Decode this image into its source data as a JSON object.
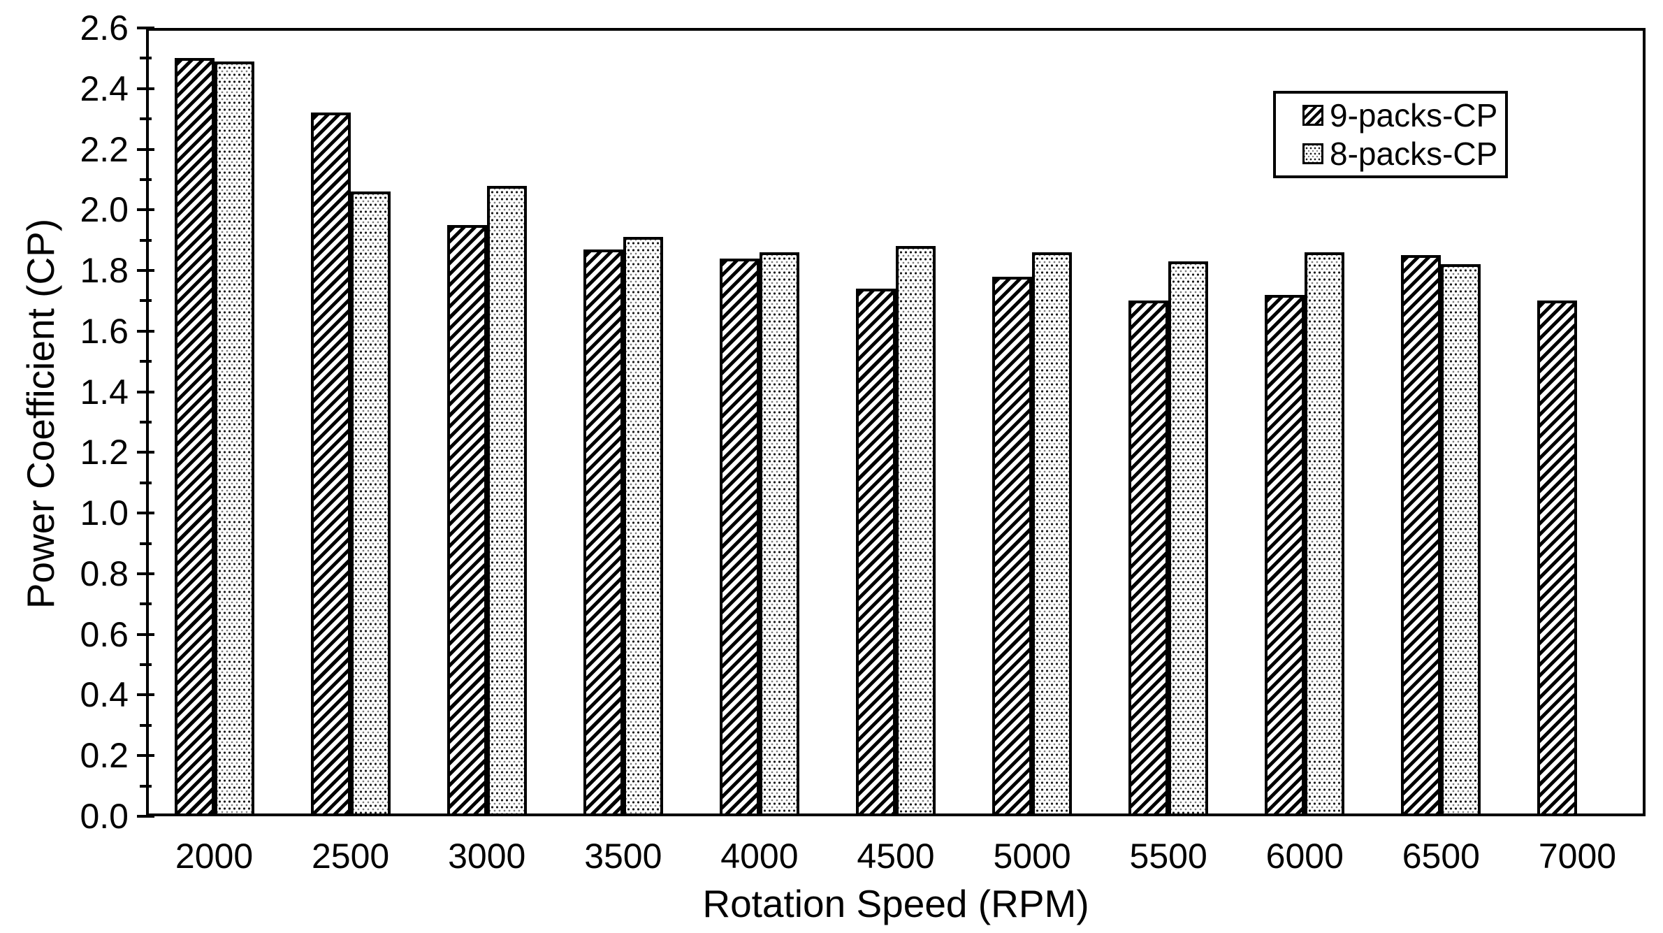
{
  "figure": {
    "background_color": "#ffffff",
    "axis_color": "#000000",
    "text_color": "#000000"
  },
  "chart_data": {
    "type": "bar",
    "title": "",
    "xlabel": "Rotation Speed (RPM)",
    "ylabel": "Power Coefficient (CP)",
    "categories": [
      "2000",
      "2500",
      "3000",
      "3500",
      "4000",
      "4500",
      "5000",
      "5500",
      "6000",
      "6500",
      "7000"
    ],
    "series": [
      {
        "name": "9-packs-CP",
        "pattern": "diagonal-hatch",
        "values": [
          2.5,
          2.32,
          1.95,
          1.87,
          1.84,
          1.74,
          1.78,
          1.7,
          1.72,
          1.85,
          1.7
        ]
      },
      {
        "name": "8-packs-CP",
        "pattern": "dots",
        "values": [
          2.49,
          2.06,
          2.08,
          1.91,
          1.86,
          1.88,
          1.86,
          1.83,
          1.86,
          1.82,
          null
        ]
      }
    ],
    "ylim": [
      0.0,
      2.6
    ],
    "y_major_step": 0.2,
    "y_minor_step": 0.1,
    "y_tick_labels": [
      "0.0",
      "0.2",
      "0.4",
      "0.6",
      "0.8",
      "1.0",
      "1.2",
      "1.4",
      "1.6",
      "1.8",
      "2.0",
      "2.2",
      "2.4",
      "2.6"
    ],
    "grid": "off",
    "legend_position": "top-right",
    "legend_items": [
      {
        "swatch": "diagonal-hatch-swatch-icon",
        "label": "9-packs-CP"
      },
      {
        "swatch": "dots-swatch-icon",
        "label": "8-packs-CP"
      }
    ]
  }
}
